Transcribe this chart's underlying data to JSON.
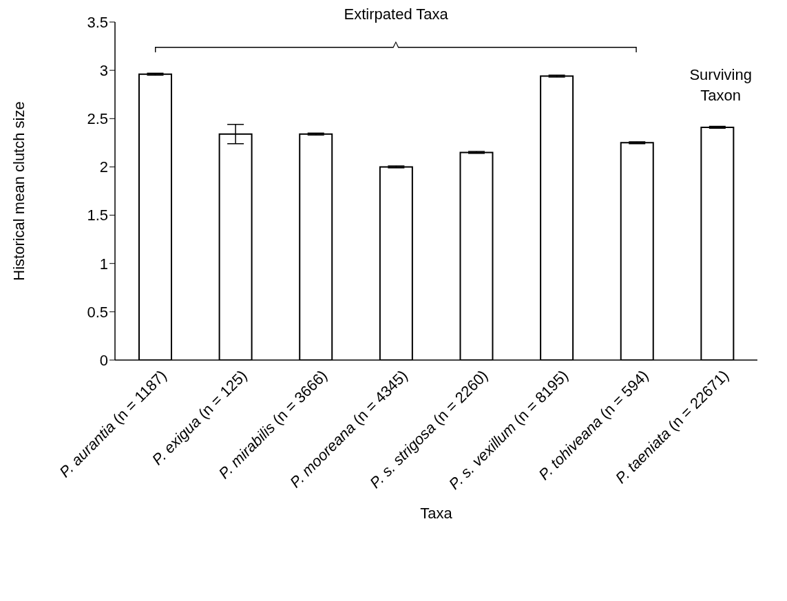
{
  "chart_data": {
    "type": "bar",
    "xlabel": "Taxa",
    "ylabel": "Historical mean clutch size",
    "categories": [
      "P. aurantia (n = 1187)",
      "P. exigua (n = 125)",
      "P. mirabilis (n = 3666)",
      "P. mooreana (n = 4345)",
      "P. s. strigosa (n = 2260)",
      "P. s. vexillum (n = 8195)",
      "P. tohiveana (n = 594)",
      "P. taeniata (n = 22671)"
    ],
    "values": [
      2.96,
      2.34,
      2.34,
      2.0,
      2.15,
      2.94,
      2.25,
      2.41
    ],
    "errors": [
      0.01,
      0.1,
      0.01,
      0.01,
      0.01,
      0.01,
      0.01,
      0.01
    ],
    "color": "#ffffff",
    "ylim": [
      0,
      3.5
    ],
    "yticks": [
      0,
      0.5,
      1,
      1.5,
      2,
      2.5,
      3,
      3.5
    ],
    "annotations": [
      "Extirpated Taxa",
      "Surviving Taxon"
    ]
  }
}
